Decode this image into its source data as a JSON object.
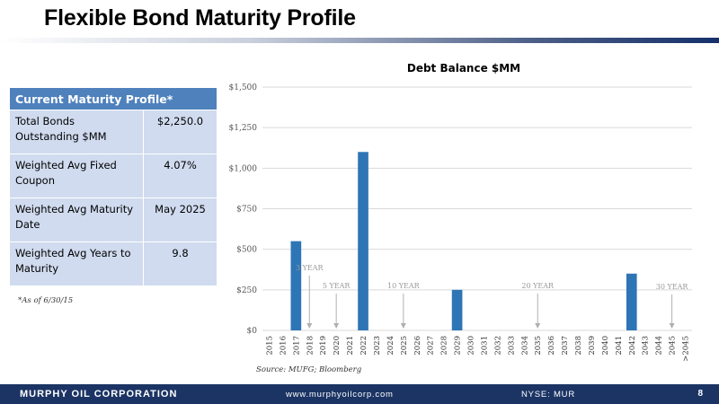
{
  "slide": {
    "title": "Flexible Bond Maturity Profile"
  },
  "table": {
    "header": "Current Maturity Profile*",
    "rows": [
      {
        "label": "Total Bonds Outstanding $MM",
        "value": "$2,250.0"
      },
      {
        "label": "Weighted Avg Fixed Coupon",
        "value": "4.07%"
      },
      {
        "label": "Weighted Avg Maturity Date",
        "value": "May 2025"
      },
      {
        "label": "Weighted Avg Years to Maturity",
        "value": "9.8"
      }
    ],
    "footnote": "*As of 6/30/15"
  },
  "chart_data": {
    "type": "bar",
    "title": "Debt Balance  $MM",
    "categories": [
      "2015",
      "2016",
      "2017",
      "2018",
      "2019",
      "2020",
      "2021",
      "2022",
      "2023",
      "2024",
      "2025",
      "2026",
      "2027",
      "2028",
      "2029",
      "2030",
      "2031",
      "2032",
      "2033",
      "2034",
      "2035",
      "2036",
      "2037",
      "2038",
      "2039",
      "2040",
      "2041",
      "2042",
      "2043",
      "2044",
      "2045",
      ">2045"
    ],
    "values": [
      0,
      0,
      550,
      0,
      0,
      0,
      0,
      1100,
      0,
      0,
      0,
      0,
      0,
      0,
      250,
      0,
      0,
      0,
      0,
      0,
      0,
      0,
      0,
      0,
      0,
      0,
      0,
      350,
      0,
      0,
      0,
      0
    ],
    "yticks": [
      "$0",
      "$250",
      "$500",
      "$750",
      "$1,000",
      "$1,250",
      "$1,500"
    ],
    "ylim": [
      0,
      1500
    ],
    "bar_color": "#2e75b6",
    "grid": true,
    "annotations": [
      {
        "label": "3 YEAR",
        "category": "2018"
      },
      {
        "label": "5 YEAR",
        "category": "2020"
      },
      {
        "label": "10 YEAR",
        "category": "2025"
      },
      {
        "label": "20 YEAR",
        "category": "2035"
      },
      {
        "label": "30 YEAR",
        "category": "2045"
      }
    ],
    "source": "Source:  MUFG; Bloomberg"
  },
  "footer": {
    "company": "MURPHY OIL CORPORATION",
    "url": "www.murphyoilcorp.com",
    "ticker": "NYSE: MUR",
    "page": "8"
  }
}
